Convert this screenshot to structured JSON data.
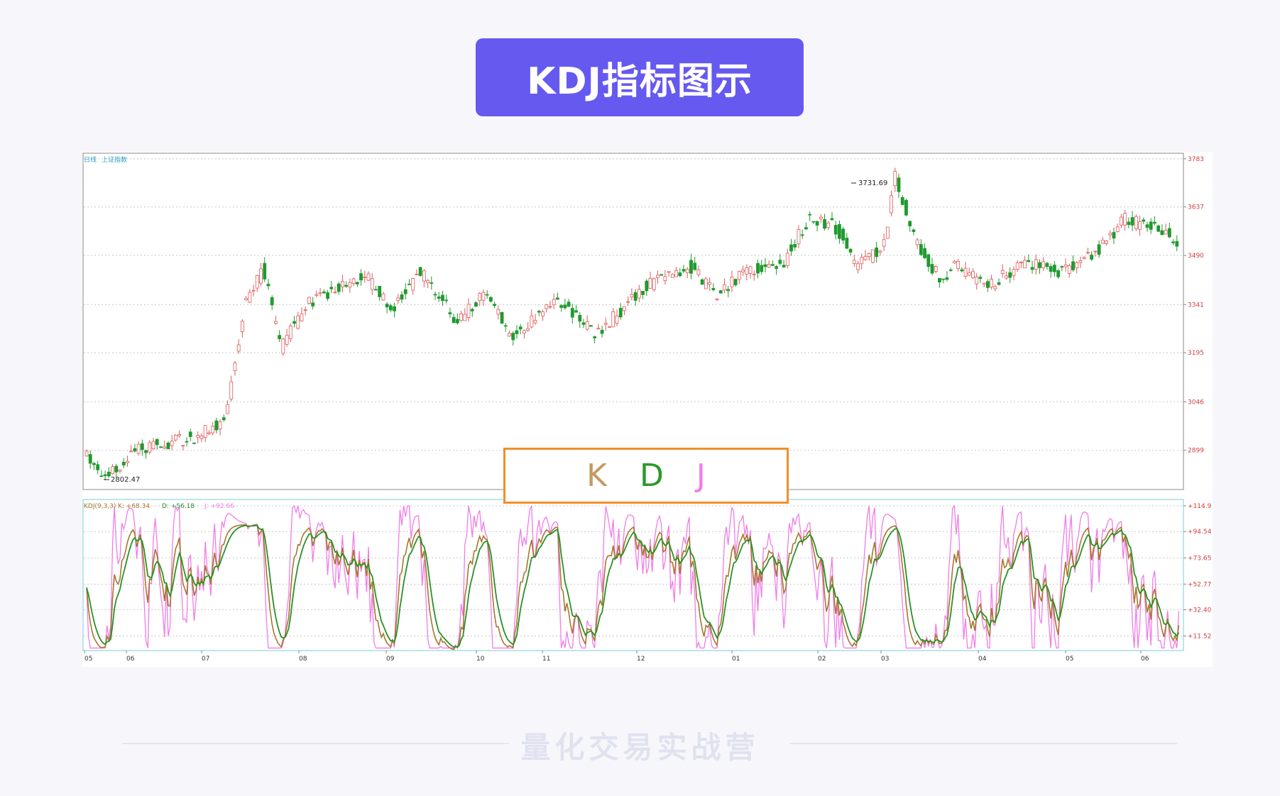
{
  "header": {
    "title": "KDJ指标图示"
  },
  "chart_data": {
    "type": "candlestick + line",
    "price_panel": {
      "label_period": "日线",
      "label_index": "上证指数",
      "y_ticks": [
        3783,
        3637,
        3490,
        3341,
        3195,
        3046,
        2899
      ],
      "annotations": {
        "high": "3731.69",
        "low": "2802.47"
      },
      "ohlc": [],
      "ylim": [
        2780,
        3800
      ]
    },
    "kdj_panel": {
      "label": "KDJ(9,3,3)",
      "k_label": "K: +68.34",
      "d_label": "D: +56.18",
      "j_label": "J: +92.66",
      "y_ticks": [
        "+114.9",
        "+94.54",
        "+73.65",
        "+52.77",
        "+32.40",
        "+11.52"
      ],
      "ylim": [
        0,
        120
      ]
    },
    "x_labels": [
      "05",
      "06",
      "07",
      "08",
      "09",
      "10",
      "11",
      "12",
      "01",
      "02",
      "03",
      "04",
      "05",
      "06"
    ],
    "series_colors": {
      "up": "#e05a5a",
      "down": "#1f9a2e",
      "K": "#a8762f",
      "D": "#2a8f2a",
      "J": "#f07ce8"
    }
  },
  "legend_box": {
    "k": "K",
    "d": "D",
    "j": "J"
  },
  "footer": {
    "text": "量化交易实战营"
  }
}
